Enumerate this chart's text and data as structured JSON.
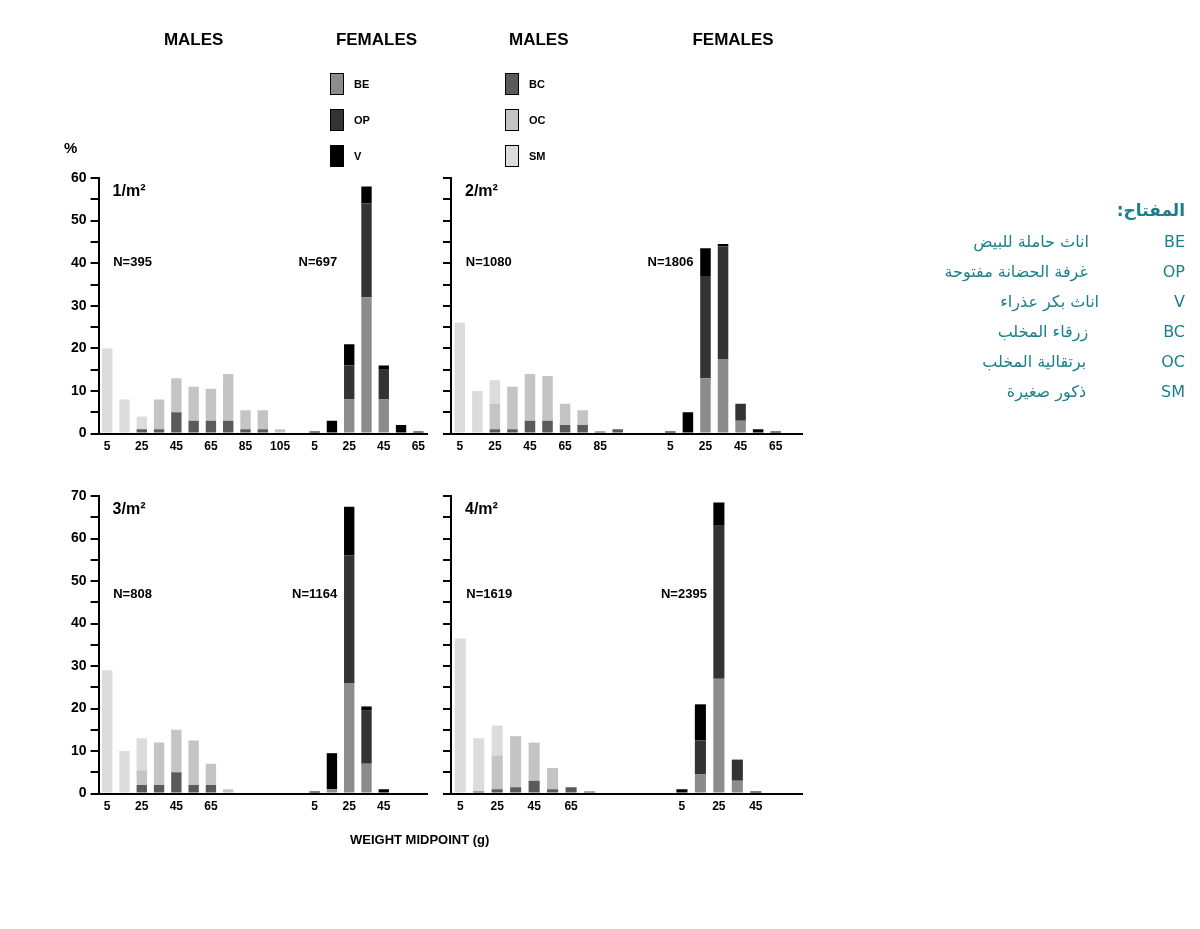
{
  "chart_data": [
    {
      "type": "bar",
      "stacked": true,
      "title": "1/m²",
      "ylabel": "%",
      "legend": "top",
      "annotations": [
        "MALES",
        "FEMALES",
        "N=395",
        "N=697"
      ],
      "categories": [
        "5",
        null,
        "25",
        null,
        "45",
        null,
        "65",
        null,
        "85",
        null,
        "105",
        null,
        "5",
        null,
        "25",
        null,
        "45",
        null,
        "65"
      ],
      "ylim": [
        0,
        60
      ],
      "yticks": [
        0,
        {
          "value": 5,
          "label": null
        },
        10,
        {
          "value": 15,
          "label": null
        },
        20,
        {
          "value": 25,
          "label": null
        },
        30,
        {
          "value": 35,
          "label": null
        },
        40,
        {
          "value": 45,
          "label": null
        },
        50,
        {
          "value": 55,
          "label": null
        },
        60
      ],
      "series": [
        {
          "name": "BC",
          "color": "#5a5a5a",
          "values": [
            null,
            null,
            1,
            1,
            5,
            3,
            3,
            3,
            1,
            1,
            null,
            null,
            null,
            null,
            null,
            null,
            null,
            null,
            null
          ]
        },
        {
          "name": "OC",
          "color": "#c4c4c4",
          "values": [
            null,
            null,
            null,
            7,
            8,
            8,
            7.5,
            11,
            4.5,
            4.5,
            1,
            null,
            null,
            null,
            null,
            null,
            null,
            null,
            null
          ]
        },
        {
          "name": "SM",
          "color": "#dcdcdc",
          "values": [
            20,
            8,
            3,
            null,
            null,
            null,
            null,
            null,
            null,
            null,
            null,
            null,
            null,
            null,
            null,
            null,
            null,
            null,
            null
          ]
        },
        {
          "name": "BE",
          "color": "#8c8c8c",
          "values": [
            null,
            null,
            null,
            null,
            null,
            null,
            null,
            null,
            null,
            null,
            null,
            null,
            null,
            null,
            8,
            32,
            8,
            null,
            null
          ]
        },
        {
          "name": "OP",
          "color": "#333333",
          "values": [
            null,
            null,
            null,
            null,
            null,
            null,
            null,
            null,
            null,
            null,
            null,
            null,
            null,
            null,
            8,
            22,
            7,
            null,
            null
          ]
        },
        {
          "name": "V",
          "color": "#000000",
          "values": [
            null,
            null,
            null,
            null,
            null,
            null,
            null,
            null,
            null,
            null,
            null,
            null,
            0.5,
            3,
            5,
            4,
            1,
            2,
            0.5
          ]
        }
      ]
    },
    {
      "type": "bar",
      "stacked": true,
      "title": "2/m²",
      "tick_labels": "x",
      "annotations": [
        "MALES",
        "FEMALES",
        "N=1080",
        "N=1806"
      ],
      "categories": [
        "5",
        null,
        "25",
        null,
        "45",
        null,
        "65",
        null,
        "85",
        null,
        null,
        null,
        "5",
        null,
        "25",
        null,
        "45",
        null,
        "65",
        null
      ],
      "ylim": [
        0,
        60
      ],
      "yticks": [
        0,
        {
          "value": 5,
          "label": null
        },
        10,
        {
          "value": 15,
          "label": null
        },
        20,
        {
          "value": 25,
          "label": null
        },
        30,
        {
          "value": 35,
          "label": null
        },
        40,
        {
          "value": 45,
          "label": null
        },
        50,
        {
          "value": 55,
          "label": null
        },
        60
      ],
      "series": [
        {
          "color": "#5a5a5a",
          "values": [
            null,
            null,
            1,
            1,
            3,
            3,
            2,
            2,
            0.5,
            1,
            null,
            null,
            null,
            null,
            null,
            null,
            null,
            null,
            null,
            null
          ]
        },
        {
          "color": "#c4c4c4",
          "values": [
            null,
            null,
            6,
            10,
            11,
            10.5,
            5,
            3.5,
            null,
            null,
            null,
            null,
            null,
            null,
            null,
            null,
            null,
            null,
            null,
            null
          ]
        },
        {
          "color": "#dcdcdc",
          "values": [
            26,
            10,
            5.5,
            null,
            null,
            null,
            null,
            null,
            null,
            null,
            null,
            null,
            null,
            null,
            null,
            null,
            null,
            null,
            null,
            null
          ]
        },
        {
          "color": "#8c8c8c",
          "values": [
            null,
            null,
            null,
            null,
            null,
            null,
            null,
            null,
            null,
            null,
            null,
            null,
            null,
            null,
            13,
            17.5,
            3,
            null,
            null,
            null
          ]
        },
        {
          "color": "#333333",
          "values": [
            null,
            null,
            null,
            null,
            null,
            null,
            null,
            null,
            null,
            null,
            null,
            null,
            null,
            null,
            24,
            26.5,
            4,
            null,
            null,
            null
          ]
        },
        {
          "color": "#000000",
          "values": [
            null,
            null,
            null,
            null,
            null,
            null,
            null,
            null,
            null,
            null,
            null,
            null,
            0.5,
            5,
            6.5,
            0.5,
            null,
            1,
            0.5,
            null
          ]
        }
      ]
    },
    {
      "type": "bar",
      "stacked": true,
      "title": "3/m²",
      "xlabel": "WEIGHT MIDPOINT (g)",
      "annotations": [
        "N=808",
        "N=1164"
      ],
      "categories": [
        "5",
        null,
        "25",
        null,
        "45",
        null,
        "65",
        null,
        null,
        null,
        null,
        null,
        "5",
        null,
        "25",
        null,
        "45",
        null,
        null
      ],
      "ylim": [
        0,
        70
      ],
      "yticks": [
        0,
        {
          "value": 5,
          "label": null
        },
        10,
        {
          "value": 15,
          "label": null
        },
        20,
        {
          "value": 25,
          "label": null
        },
        30,
        {
          "value": 35,
          "label": null
        },
        40,
        {
          "value": 45,
          "label": null
        },
        50,
        {
          "value": 55,
          "label": null
        },
        60,
        {
          "value": 65,
          "label": null
        },
        70
      ],
      "series": [
        {
          "color": "#5a5a5a",
          "values": [
            null,
            null,
            2,
            2,
            5,
            2,
            2,
            null,
            null,
            null,
            null,
            null,
            null,
            null,
            null,
            null,
            null,
            null,
            null
          ]
        },
        {
          "color": "#c4c4c4",
          "values": [
            null,
            null,
            3.5,
            10,
            10,
            10.5,
            5,
            1,
            null,
            null,
            null,
            null,
            null,
            null,
            null,
            null,
            null,
            null,
            null
          ]
        },
        {
          "color": "#dcdcdc",
          "values": [
            29,
            10,
            7.5,
            null,
            null,
            null,
            null,
            null,
            null,
            null,
            null,
            null,
            null,
            null,
            null,
            null,
            null,
            null,
            null
          ]
        },
        {
          "color": "#8c8c8c",
          "values": [
            null,
            null,
            null,
            null,
            null,
            null,
            null,
            null,
            null,
            null,
            null,
            null,
            null,
            1,
            26,
            7,
            null,
            null,
            null
          ]
        },
        {
          "color": "#333333",
          "values": [
            null,
            null,
            null,
            null,
            null,
            null,
            null,
            null,
            null,
            null,
            null,
            null,
            null,
            null,
            30,
            12.5,
            null,
            null,
            null
          ]
        },
        {
          "color": "#000000",
          "values": [
            null,
            null,
            null,
            null,
            null,
            null,
            null,
            null,
            null,
            null,
            null,
            null,
            0.5,
            8.5,
            11.5,
            1,
            1,
            null,
            null
          ]
        }
      ]
    },
    {
      "type": "bar",
      "stacked": true,
      "title": "4/m²",
      "tick_labels": "x",
      "annotations": [
        "N=1619",
        "N=2395"
      ],
      "categories": [
        "5",
        null,
        "25",
        null,
        "45",
        null,
        "65",
        null,
        null,
        null,
        null,
        null,
        "5",
        null,
        "25",
        null,
        "45",
        null,
        null
      ],
      "ylim": [
        0,
        70
      ],
      "yticks": [
        0,
        {
          "value": 5,
          "label": null
        },
        10,
        {
          "value": 15,
          "label": null
        },
        20,
        {
          "value": 25,
          "label": null
        },
        30,
        {
          "value": 35,
          "label": null
        },
        40,
        {
          "value": 45,
          "label": null
        },
        50,
        {
          "value": 55,
          "label": null
        },
        60,
        {
          "value": 65,
          "label": null
        },
        70
      ],
      "series": [
        {
          "color": "#5a5a5a",
          "values": [
            null,
            0.5,
            1,
            1.5,
            3,
            1,
            1.5,
            0.5,
            null,
            null,
            null,
            null,
            null,
            null,
            null,
            null,
            null,
            null,
            null
          ]
        },
        {
          "color": "#c4c4c4",
          "values": [
            null,
            null,
            8,
            12,
            9,
            5,
            null,
            null,
            null,
            null,
            null,
            null,
            null,
            null,
            null,
            null,
            null,
            null,
            null
          ]
        },
        {
          "color": "#dcdcdc",
          "values": [
            36.5,
            12.5,
            7,
            null,
            null,
            null,
            null,
            null,
            null,
            null,
            null,
            null,
            null,
            null,
            null,
            null,
            null,
            null,
            null
          ]
        },
        {
          "color": "#8c8c8c",
          "values": [
            null,
            null,
            null,
            null,
            null,
            null,
            null,
            null,
            null,
            null,
            null,
            null,
            null,
            4.5,
            27,
            3,
            null,
            null,
            null
          ]
        },
        {
          "color": "#333333",
          "values": [
            null,
            null,
            null,
            null,
            null,
            null,
            null,
            null,
            null,
            null,
            null,
            null,
            null,
            8,
            36,
            5,
            null,
            null,
            null
          ]
        },
        {
          "color": "#000000",
          "values": [
            null,
            null,
            null,
            null,
            null,
            null,
            null,
            null,
            null,
            null,
            null,
            null,
            1,
            8.5,
            5.5,
            null,
            0.5,
            null,
            null
          ]
        }
      ]
    },
    {
      "type": "other",
      "title": "المفتاح:",
      "annotations": [
        "BE",
        "اناث حاملة للبيض",
        "OP",
        "غرفة الحضانة مفتوحة",
        "V",
        "اناث بكر عذراء",
        "BC",
        "زرقاء المخلب",
        "OC",
        "برتقالية المخلب",
        "SM",
        "ذكور صغيرة"
      ]
    }
  ]
}
